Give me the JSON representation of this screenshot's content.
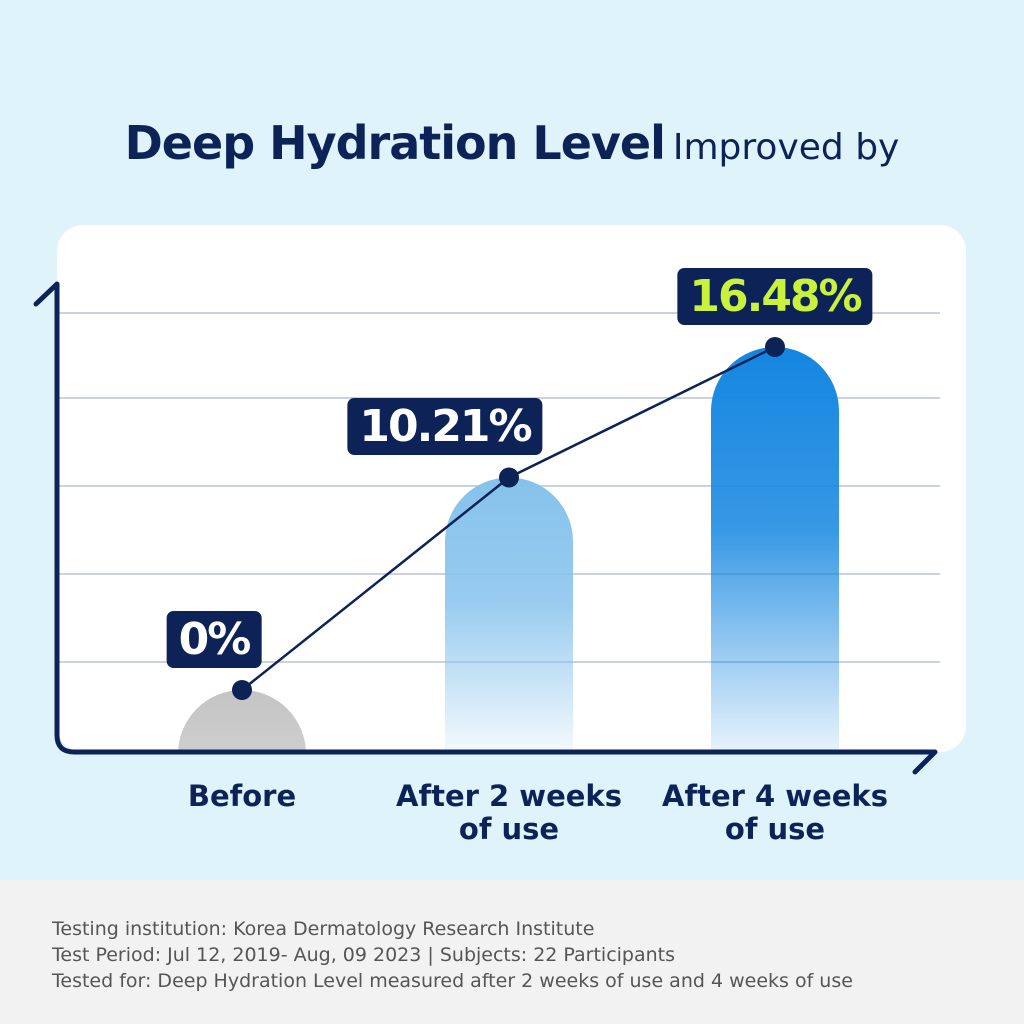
{
  "chart_data": {
    "type": "bar",
    "title": "Deep Hydration Level",
    "subtitle": "Improved by",
    "categories": [
      "Before",
      "After 2 weeks of use",
      "After 4 weeks of use"
    ],
    "values": [
      0,
      10.21,
      16.48
    ],
    "value_labels": [
      "0%",
      "10.21%",
      "16.48%"
    ],
    "colors": [
      "#c4c4c4",
      "#86c2ec",
      "#1486e0"
    ],
    "label_colors": [
      "#ffffff",
      "#ffffff",
      "#c9f23c"
    ],
    "line_color": "#0d2357",
    "notes": [
      "Testing institution: Korea Dermatology Research Institute",
      "Test Period: Jul 12, 2019- Aug, 09 2023  |  Subjects: 22 Participants",
      "Tested for: Deep Hydration Level measured after 2 weeks of use and 4 weeks of use"
    ]
  }
}
